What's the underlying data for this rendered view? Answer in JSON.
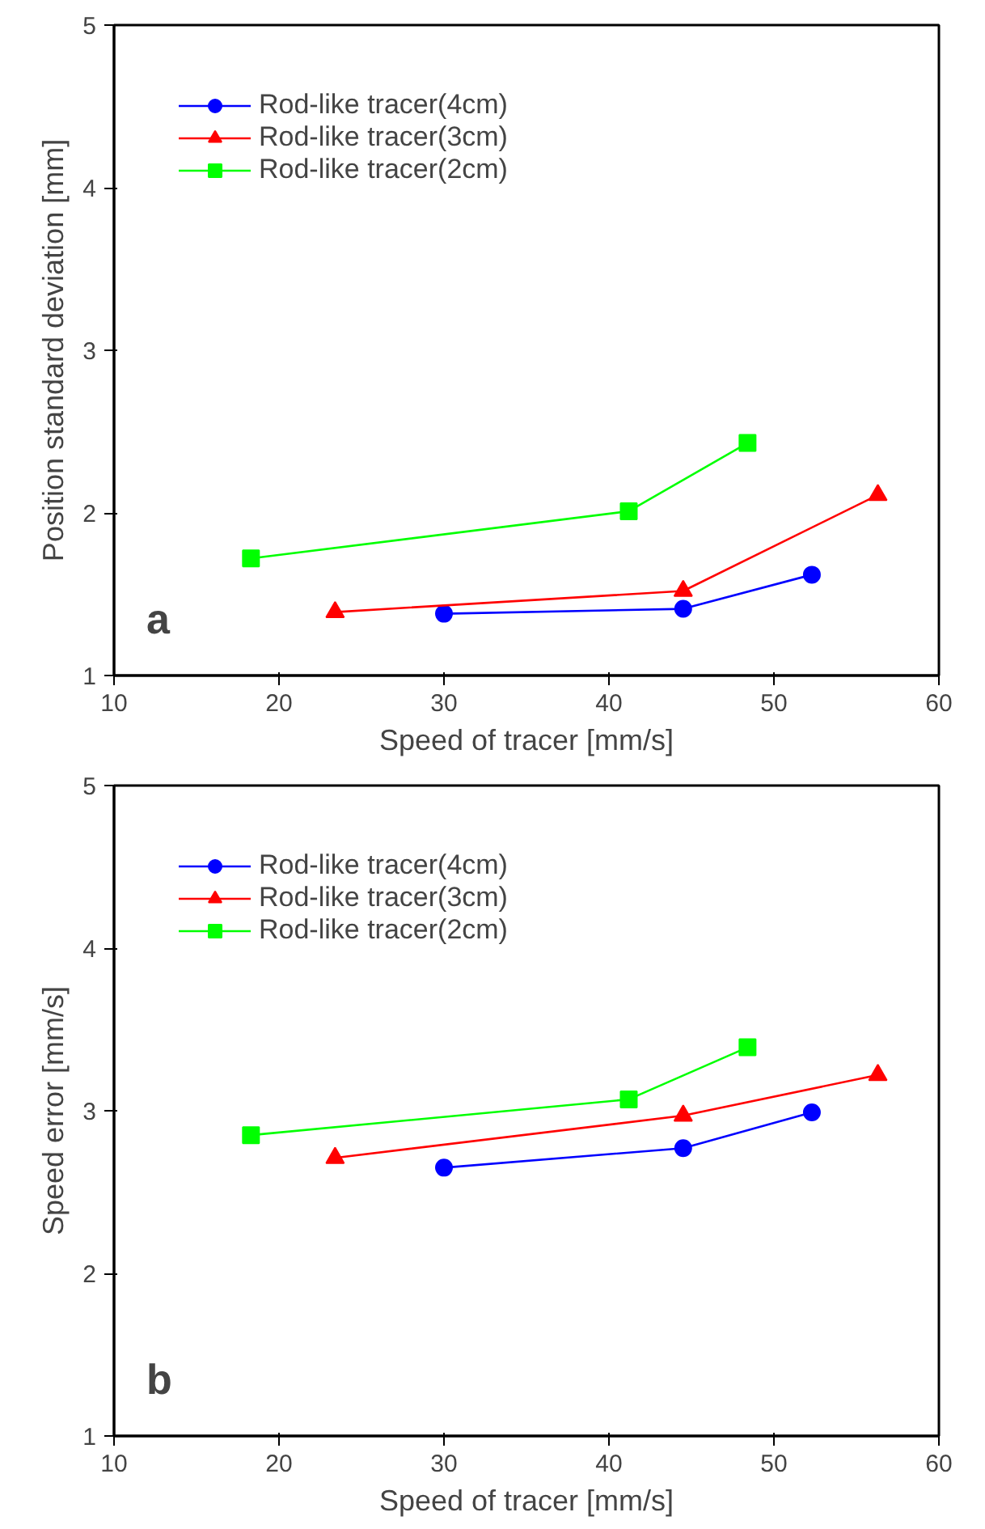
{
  "chart_data": [
    {
      "type": "line",
      "xlabel": "Speed of tracer [mm/s]",
      "ylabel": "Position standard deviation [mm]",
      "xlim": [
        10,
        60
      ],
      "xticks": [
        10,
        20,
        30,
        40,
        50,
        60
      ],
      "ylim": [
        1,
        5
      ],
      "yticks": [
        1,
        2,
        3,
        4,
        5
      ],
      "grid": false,
      "legend": "top left",
      "line_style": "solid",
      "annotations": [
        "a"
      ],
      "series": [
        {
          "name": "Rod-like tracer(4cm)",
          "color": "#0000ff",
          "marker": "circle",
          "x": [
            30,
            44.5,
            52.3
          ],
          "values": [
            1.38,
            1.41,
            1.62
          ]
        },
        {
          "name": "Rod-like tracer(3cm)",
          "color": "#ff0000",
          "marker": "triangle",
          "x": [
            23.4,
            44.5,
            56.3
          ],
          "values": [
            1.39,
            1.52,
            2.11
          ]
        },
        {
          "name": "Rod-like tracer(2cm)",
          "color": "#00ff00",
          "marker": "square",
          "x": [
            18.3,
            41.2,
            48.4
          ],
          "values": [
            1.72,
            2.01,
            2.43
          ]
        }
      ]
    },
    {
      "type": "line",
      "xlabel": "Speed of tracer [mm/s]",
      "ylabel": "Speed error [mm/s]",
      "xlim": [
        10,
        60
      ],
      "xticks": [
        10,
        20,
        30,
        40,
        50,
        60
      ],
      "ylim": [
        1,
        5
      ],
      "yticks": [
        1,
        2,
        3,
        4,
        5
      ],
      "grid": false,
      "legend": "top left",
      "line_style": "solid",
      "annotations": [
        "b"
      ],
      "series": [
        {
          "name": "Rod-like tracer(4cm)",
          "color": "#0000ff",
          "marker": "circle",
          "x": [
            30,
            44.5,
            52.3
          ],
          "values": [
            2.65,
            2.77,
            2.99
          ]
        },
        {
          "name": "Rod-like tracer(3cm)",
          "color": "#ff0000",
          "marker": "triangle",
          "x": [
            23.4,
            44.5,
            56.3
          ],
          "values": [
            2.71,
            2.97,
            3.22
          ]
        },
        {
          "name": "Rod-like tracer(2cm)",
          "color": "#00ff00",
          "marker": "square",
          "x": [
            18.3,
            41.2,
            48.4
          ],
          "values": [
            2.85,
            3.07,
            3.39
          ]
        }
      ]
    }
  ]
}
